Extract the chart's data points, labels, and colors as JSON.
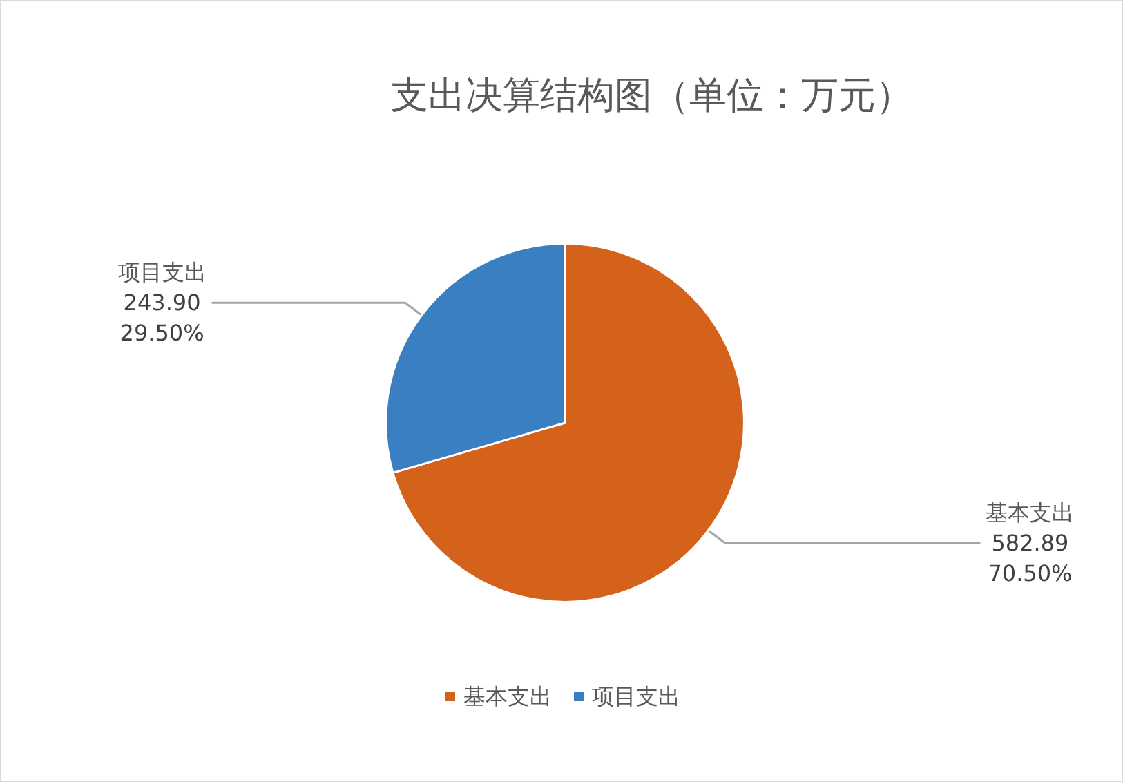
{
  "chart_data": {
    "type": "pie",
    "title": "支出决算结构图（单位：万元）",
    "categories": [
      "基本支出",
      "项目支出"
    ],
    "values": [
      582.89,
      243.9
    ],
    "colors": [
      "#d4621a",
      "#3a7fc1"
    ],
    "value_labels": [
      "582.89\n70.50%",
      "243.90\n29.50%"
    ],
    "legend": "bottom"
  }
}
